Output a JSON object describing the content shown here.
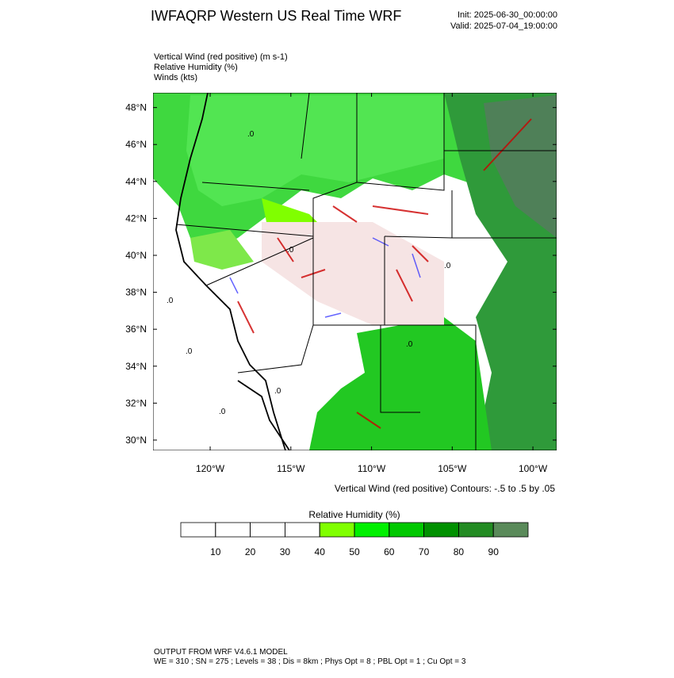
{
  "header": {
    "title": "IWFAQRP Western US Real Time WRF",
    "init": "Init: 2025-06-30_00:00:00",
    "valid": "Valid: 2025-07-04_19:00:00"
  },
  "fields": [
    "Vertical Wind (red positive)   (m s-1)",
    "Relative Humidity   (%)",
    "Winds   (kts)"
  ],
  "map": {
    "lat_range": [
      29.44,
      48.8
    ],
    "lon_range": [
      -123.54,
      -98.53
    ],
    "lat_ticks": [
      {
        "value": 48,
        "label": "48°N"
      },
      {
        "value": 46,
        "label": "46°N"
      },
      {
        "value": 44,
        "label": "44°N"
      },
      {
        "value": 42,
        "label": "42°N"
      },
      {
        "value": 40,
        "label": "40°N"
      },
      {
        "value": 38,
        "label": "38°N"
      },
      {
        "value": 36,
        "label": "36°N"
      },
      {
        "value": 34,
        "label": "34°N"
      },
      {
        "value": 32,
        "label": "32°N"
      },
      {
        "value": 30,
        "label": "30°N"
      }
    ],
    "lon_ticks": [
      {
        "value": -120,
        "label": "120°W"
      },
      {
        "value": -115,
        "label": "115°W"
      },
      {
        "value": -110,
        "label": "110°W"
      },
      {
        "value": -105,
        "label": "105°W"
      },
      {
        "value": -100,
        "label": "100°W"
      }
    ],
    "contour_label": ".0",
    "contour_info": "Vertical Wind (red positive) Contours: -.5 to .5 by .05"
  },
  "colorbar": {
    "title": "Relative Humidity  (%)",
    "ticks": [
      10,
      20,
      30,
      40,
      50,
      60,
      70,
      80,
      90
    ],
    "colors": [
      "#ffffff",
      "#ffffff",
      "#ffffff",
      "#ffffff",
      "#80ff00",
      "#00f000",
      "#00c800",
      "#009000",
      "#238b23",
      "#5a8a5a"
    ]
  },
  "footer": [
    "OUTPUT FROM WRF V4.6.1 MODEL",
    "WE = 310 ; SN = 275 ; Levels = 38 ; Dis = 8km ; Phys Opt = 8 ; PBL Opt = 1 ; Cu Opt = 3"
  ]
}
